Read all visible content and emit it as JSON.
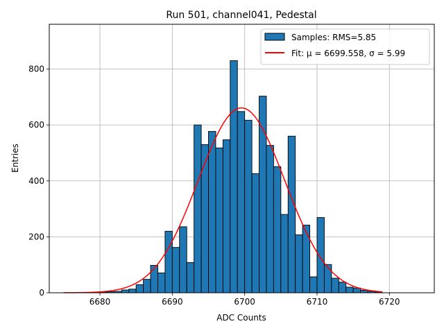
{
  "chart_data": {
    "type": "bar",
    "title": "Run 501, channel041, Pedestal",
    "xlabel": "ADC Counts",
    "ylabel": "Entries",
    "xlim": [
      6673.0,
      6726.2
    ],
    "ylim": [
      0,
      960
    ],
    "xticks": [
      6680,
      6690,
      6700,
      6710,
      6720
    ],
    "yticks": [
      0,
      200,
      400,
      600,
      800
    ],
    "grid": true,
    "legend_position": "top-right",
    "bin_width": 1,
    "bins": [
      {
        "x": 6680,
        "y": 3
      },
      {
        "x": 6681,
        "y": 4
      },
      {
        "x": 6682,
        "y": 5
      },
      {
        "x": 6683,
        "y": 10
      },
      {
        "x": 6684,
        "y": 13
      },
      {
        "x": 6685,
        "y": 29
      },
      {
        "x": 6686,
        "y": 48
      },
      {
        "x": 6687,
        "y": 98
      },
      {
        "x": 6688,
        "y": 71
      },
      {
        "x": 6689,
        "y": 220
      },
      {
        "x": 6690,
        "y": 162
      },
      {
        "x": 6691,
        "y": 236
      },
      {
        "x": 6692,
        "y": 108
      },
      {
        "x": 6693,
        "y": 600
      },
      {
        "x": 6694,
        "y": 530
      },
      {
        "x": 6695,
        "y": 577
      },
      {
        "x": 6696,
        "y": 518
      },
      {
        "x": 6697,
        "y": 547
      },
      {
        "x": 6698,
        "y": 830
      },
      {
        "x": 6699,
        "y": 648
      },
      {
        "x": 6700,
        "y": 617
      },
      {
        "x": 6701,
        "y": 426
      },
      {
        "x": 6702,
        "y": 703
      },
      {
        "x": 6703,
        "y": 527
      },
      {
        "x": 6704,
        "y": 451
      },
      {
        "x": 6705,
        "y": 280
      },
      {
        "x": 6706,
        "y": 560
      },
      {
        "x": 6707,
        "y": 207
      },
      {
        "x": 6708,
        "y": 242
      },
      {
        "x": 6709,
        "y": 57
      },
      {
        "x": 6710,
        "y": 269
      },
      {
        "x": 6711,
        "y": 101
      },
      {
        "x": 6712,
        "y": 52
      },
      {
        "x": 6713,
        "y": 38
      },
      {
        "x": 6714,
        "y": 20
      },
      {
        "x": 6715,
        "y": 17
      },
      {
        "x": 6716,
        "y": 9
      },
      {
        "x": 6717,
        "y": 5
      },
      {
        "x": 6718,
        "y": 3
      }
    ],
    "fit": {
      "mu": 6699.558,
      "sigma": 5.99,
      "amplitude": 661,
      "x_range": [
        6675,
        6719
      ]
    },
    "series": [
      {
        "name": "Samples: RMS=5.85",
        "kind": "histogram",
        "color": "#1f77b4",
        "edgecolor": "#000000"
      },
      {
        "name": "Fit: μ = 6699.558, σ = 5.99",
        "kind": "line",
        "color": "#ff0000"
      }
    ]
  }
}
